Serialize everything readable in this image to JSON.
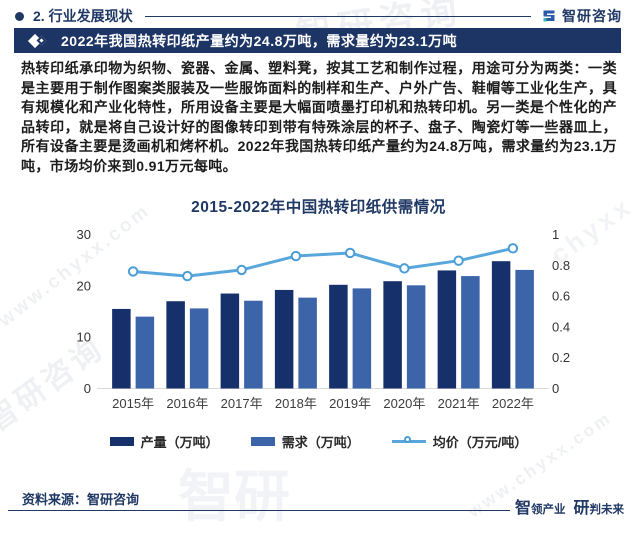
{
  "header": {
    "section_title": "2. 行业发展现状",
    "logo_text": "智研咨询"
  },
  "banner": {
    "headline": "2022年我国热转印纸产量约为24.8万吨，需求量约为23.1万吨"
  },
  "body": {
    "paragraph": "热转印纸承印物为织物、瓷器、金属、塑料凳，按其工艺和制作过程，用途可分为两类：一类是主要用于制作图案类服装及一些服饰面料的制样和生产、户外广告、鞋帽等工业化生产，具有规模化和产业化特性，所用设备主要是大幅面喷墨打印机和热转印机。另一类是个性化的产品转印，就是将自己设计好的图像转印到带有特殊涂层的杯子、盘子、陶瓷灯等一些器皿上，所有设备主要是烫画机和烤杯机。2022年我国热转印纸产量约为24.8万吨，需求量约为23.1万吨，市场均价来到0.91万元每吨。"
  },
  "chart_data": {
    "type": "bar+line",
    "title": "2015-2022年中国热转印纸供需情况",
    "categories": [
      "2015年",
      "2016年",
      "2017年",
      "2018年",
      "2019年",
      "2020年",
      "2021年",
      "2022年"
    ],
    "series": [
      {
        "name": "产量（万吨）",
        "type": "bar",
        "axis": "left",
        "color": "#16306b",
        "values": [
          15.5,
          17.0,
          18.5,
          19.2,
          20.2,
          20.9,
          23.0,
          24.8
        ]
      },
      {
        "name": "需求（万吨）",
        "type": "bar",
        "axis": "left",
        "color": "#3c64a8",
        "values": [
          14.0,
          15.6,
          17.1,
          17.7,
          19.5,
          20.1,
          21.9,
          23.1
        ]
      },
      {
        "name": "均价（万元/吨）",
        "type": "line",
        "axis": "right",
        "color": "#58a7dc",
        "values": [
          0.76,
          0.73,
          0.77,
          0.86,
          0.88,
          0.78,
          0.83,
          0.91
        ]
      }
    ],
    "left_axis": {
      "min": 0,
      "max": 30,
      "ticks": [
        0,
        10,
        20,
        30
      ]
    },
    "right_axis": {
      "min": 0,
      "max": 1,
      "ticks": [
        0,
        0.2,
        0.4,
        0.6,
        0.8,
        1
      ]
    },
    "grid": false,
    "legend_position": "bottom"
  },
  "footer": {
    "source": "资料来源：智研咨询",
    "tagline_part1": "智领产业",
    "tagline_part2": "研判未来"
  },
  "watermarks": {
    "w1": "智研咨询",
    "w2": "www.chyxx.com",
    "w3": "智研咨询",
    "w4": "智研",
    "w5": "www.chyxx.com",
    "w6": "chyxx"
  },
  "colors": {
    "accent_navy": "#1f3864",
    "banner_bg": "#1d3565",
    "production_bar": "#16306b",
    "demand_bar": "#3c64a8",
    "price_line": "#58a7dc"
  }
}
